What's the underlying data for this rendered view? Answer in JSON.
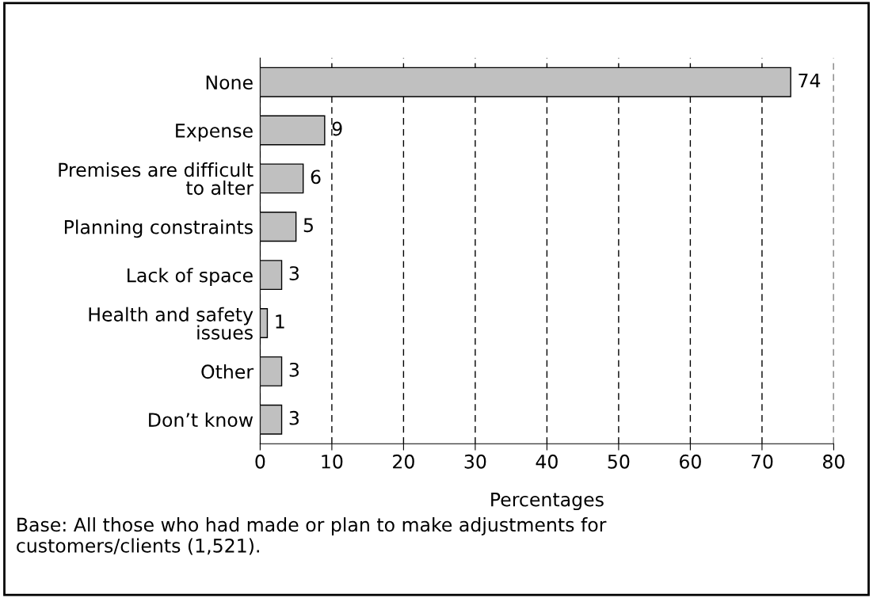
{
  "chart_data": {
    "type": "bar",
    "orientation": "horizontal",
    "categories": [
      "None",
      "Expense",
      "Premises are difficult\nto alter",
      "Planning constraints",
      "Lack of space",
      "Health and safety\nissues",
      "Other",
      "Don’t know"
    ],
    "values": [
      74,
      9,
      6,
      5,
      3,
      1,
      3,
      3
    ],
    "color": "#c0c0c0",
    "xlim": [
      0,
      80
    ],
    "xticks": [
      0,
      10,
      20,
      30,
      40,
      50,
      60,
      70,
      80
    ],
    "grid": "x",
    "data_labels": true,
    "xlabel": "Percentages",
    "annotations": [
      "Base: All those who had made or plan to make adjustments for customers/clients (1,521)."
    ]
  }
}
